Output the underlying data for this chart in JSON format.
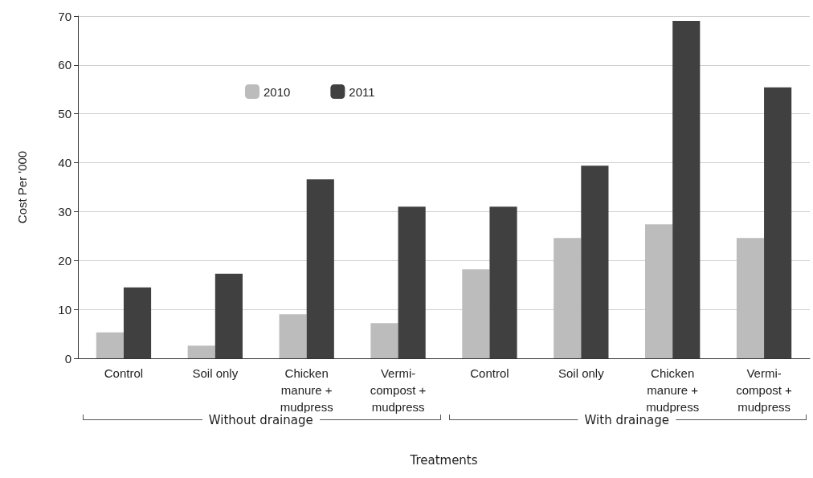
{
  "chart_data": {
    "type": "bar",
    "xlabel": "Treatments",
    "ylabel": "Cost Per '000",
    "categories": [
      "Control",
      "Soil only",
      "Chicken\nmanure +\nmudpress",
      "Vermi-\ncompost +\nmudpress",
      "Control",
      "Soil only",
      "Chicken\nmanure +\nmudpress",
      "Vermi-\ncompost +\nmudpress"
    ],
    "series": [
      {
        "name": "2010",
        "color": "#bcbcbc",
        "values": [
          5.3,
          2.6,
          9,
          7.2,
          18.2,
          24.6,
          27.4,
          24.6
        ]
      },
      {
        "name": "2011",
        "color": "#404040",
        "values": [
          14.5,
          17.3,
          36.6,
          31,
          31,
          39.4,
          69,
          55.4
        ]
      }
    ],
    "ylim": [
      0,
      70
    ],
    "yticks": [
      0,
      10,
      20,
      30,
      40,
      50,
      60,
      70
    ],
    "grid": "y",
    "legend": "top left",
    "annotations": [
      "Without drainage",
      "With drainage"
    ]
  }
}
